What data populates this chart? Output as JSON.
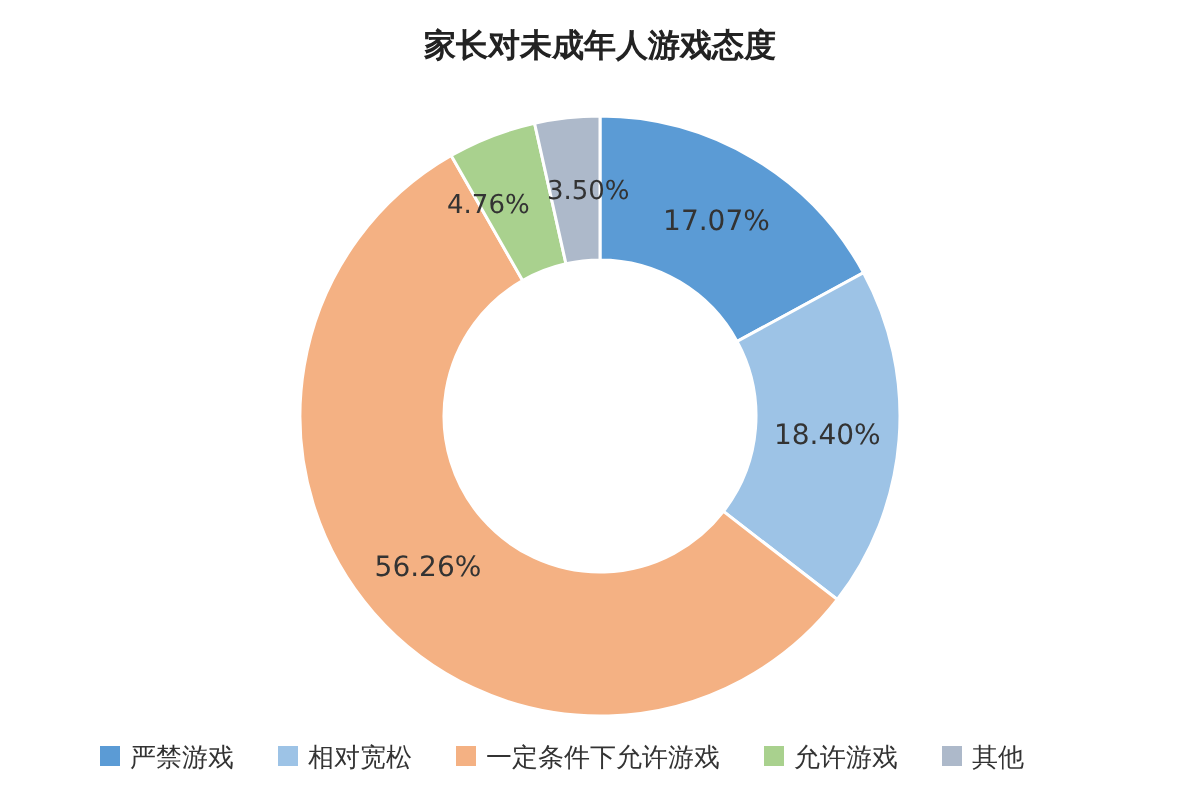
{
  "chart_data": {
    "type": "donut",
    "title": "家长对未成年人游戏态度",
    "categories": [
      "严禁游戏",
      "相对宽松",
      "一定条件下允许游戏",
      "允许游戏",
      "其他"
    ],
    "values": [
      17.07,
      18.4,
      56.26,
      4.76,
      3.5
    ],
    "colors": [
      "#5b9bd5",
      "#9dc3e6",
      "#f4b183",
      "#a9d18e",
      "#adb9ca"
    ],
    "value_labels": [
      "17.07%",
      "18.40%",
      "56.26%",
      "4.76%",
      "3.50%"
    ],
    "legend": "bottom"
  }
}
